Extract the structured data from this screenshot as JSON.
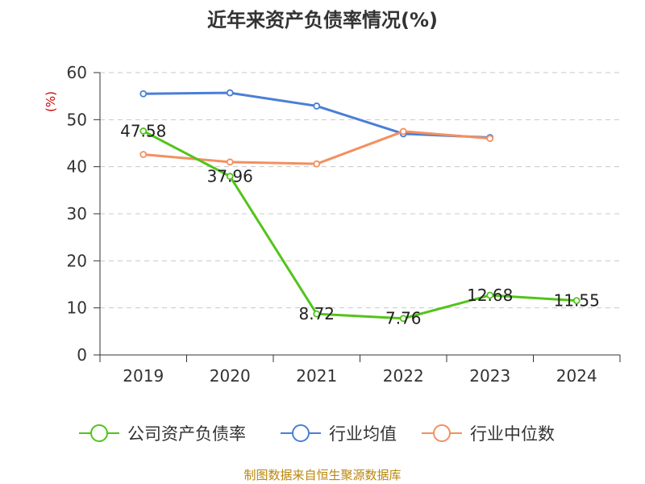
{
  "chart_data": {
    "type": "line",
    "title": "近年来资产负债率情况(%)",
    "ylabel": "(%)",
    "xlabel": "",
    "categories": [
      "2019",
      "2020",
      "2021",
      "2022",
      "2023",
      "2024"
    ],
    "ylim": [
      0,
      60
    ],
    "yticks": [
      0,
      10,
      20,
      30,
      40,
      50,
      60
    ],
    "grid": true,
    "legend_position": "bottom",
    "series": [
      {
        "name": "公司资产负债率",
        "color": "#52c41a",
        "values": [
          47.58,
          37.96,
          8.72,
          7.76,
          12.68,
          11.55
        ],
        "labels": [
          "47.58",
          "37.96",
          "8.72",
          "7.76",
          "12.68",
          "11.55"
        ]
      },
      {
        "name": "行业均值",
        "color": "#4a7fd6",
        "values": [
          55.5,
          55.7,
          52.9,
          47.0,
          46.2,
          null
        ]
      },
      {
        "name": "行业中位数",
        "color": "#f39060",
        "values": [
          42.6,
          41.0,
          40.6,
          47.5,
          46.0,
          null
        ]
      }
    ]
  },
  "footer": {
    "source": "制图数据来自恒生聚源数据库"
  }
}
